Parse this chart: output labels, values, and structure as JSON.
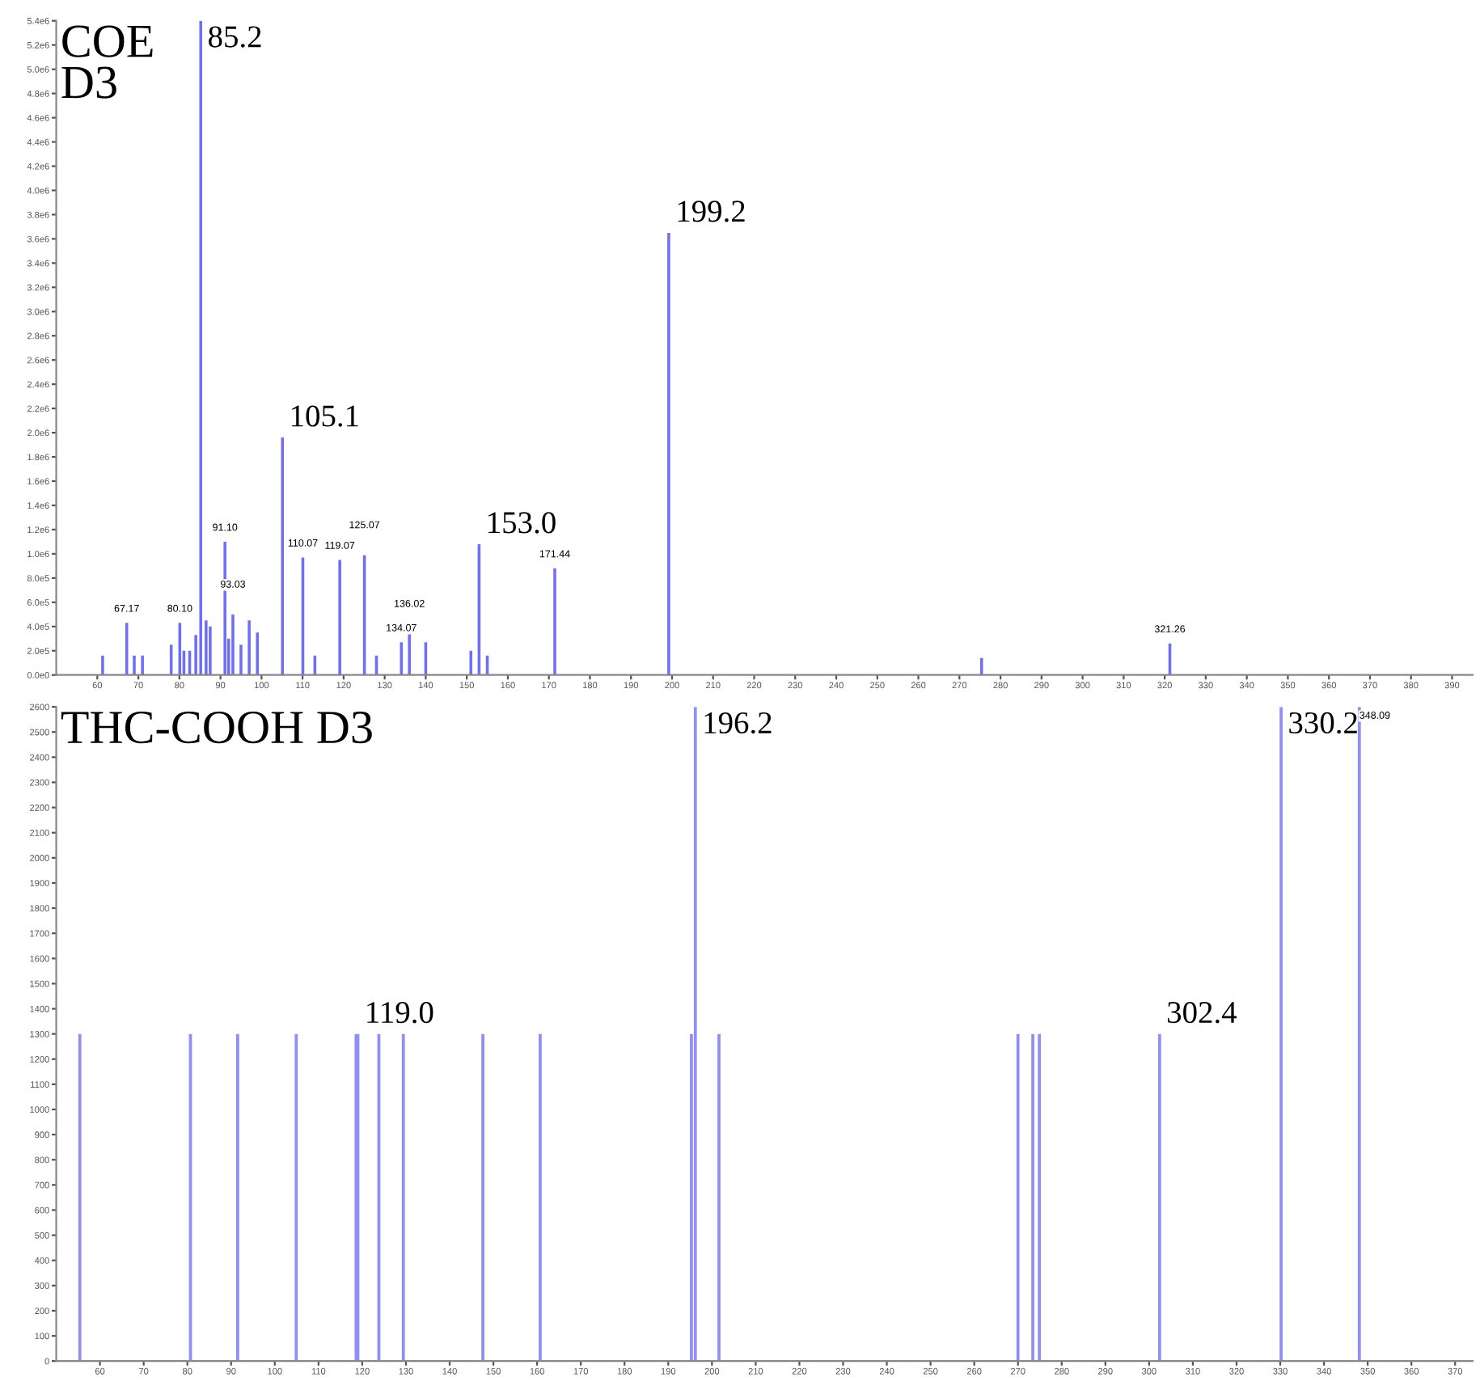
{
  "chart_data": [
    {
      "type": "bar",
      "title": "COE\nD3",
      "color": "#6f6ff5",
      "x": [
        61.3,
        67.17,
        69,
        71,
        78,
        80.1,
        81.1,
        82.5,
        84,
        85.2,
        86.5,
        87.5,
        91.1,
        92,
        93.03,
        95,
        97,
        99,
        105.1,
        110.07,
        113,
        119.07,
        125.07,
        128,
        134.07,
        136.02,
        140,
        151,
        153.0,
        155,
        171.44,
        199.2,
        275.4,
        321.26
      ],
      "values": [
        160000,
        430000,
        160000,
        160000,
        250000,
        430000,
        200000,
        200000,
        330000,
        5400000,
        450000,
        400000,
        1100000,
        300000,
        500000,
        250000,
        450000,
        350000,
        1960000,
        970000,
        160000,
        950000,
        990000,
        160000,
        270000,
        340000,
        270000,
        200000,
        1080000,
        160000,
        880000,
        3650000,
        140000,
        260000
      ],
      "annotations": [
        {
          "text": "85.2",
          "x": 85.2,
          "y": 5400000
        },
        {
          "text": "105.1",
          "x": 105.1,
          "y": 1960000
        },
        {
          "text": "153.0",
          "x": 153.0,
          "y": 1080000
        },
        {
          "text": "199.2",
          "x": 199.2,
          "y": 3650000
        },
        {
          "text": "67.17",
          "x": 67.17,
          "y": 430000
        },
        {
          "text": "80.10",
          "x": 80.1,
          "y": 430000
        },
        {
          "text": "91.10",
          "x": 91.1,
          "y": 1100000
        },
        {
          "text": "93.03",
          "x": 93.03,
          "y": 500000
        },
        {
          "text": "110.07",
          "x": 110.07,
          "y": 970000
        },
        {
          "text": "119.07",
          "x": 119.07,
          "y": 950000
        },
        {
          "text": "125.07",
          "x": 125.07,
          "y": 990000
        },
        {
          "text": "134.07",
          "x": 134.07,
          "y": 270000
        },
        {
          "text": "136.02",
          "x": 136.02,
          "y": 340000
        },
        {
          "text": "171.44",
          "x": 171.44,
          "y": 880000
        },
        {
          "text": "321.26",
          "x": 321.26,
          "y": 260000
        }
      ],
      "xlim": [
        50,
        395
      ],
      "xticks": [
        60,
        70,
        80,
        90,
        100,
        110,
        120,
        130,
        140,
        150,
        160,
        170,
        180,
        190,
        200,
        210,
        220,
        230,
        240,
        250,
        260,
        270,
        280,
        290,
        300,
        310,
        320,
        330,
        340,
        350,
        360,
        370,
        380,
        390
      ],
      "ylim": [
        0,
        5400000
      ],
      "yticks": [
        {
          "value": 0,
          "label": "0.0e0"
        },
        {
          "value": 200000,
          "label": "2.0e5"
        },
        {
          "value": 400000,
          "label": "4.0e5"
        },
        {
          "value": 600000,
          "label": "6.0e5"
        },
        {
          "value": 800000,
          "label": "8.0e5"
        },
        {
          "value": 1000000,
          "label": "1.0e6"
        },
        {
          "value": 1200000,
          "label": "1.2e6"
        },
        {
          "value": 1400000,
          "label": "1.4e6"
        },
        {
          "value": 1600000,
          "label": "1.6e6"
        },
        {
          "value": 1800000,
          "label": "1.8e6"
        },
        {
          "value": 2000000,
          "label": "2.0e6"
        },
        {
          "value": 2200000,
          "label": "2.2e6"
        },
        {
          "value": 2400000,
          "label": "2.4e6"
        },
        {
          "value": 2600000,
          "label": "2.6e6"
        },
        {
          "value": 2800000,
          "label": "2.8e6"
        },
        {
          "value": 3000000,
          "label": "3.0e6"
        },
        {
          "value": 3200000,
          "label": "3.2e6"
        },
        {
          "value": 3400000,
          "label": "3.4e6"
        },
        {
          "value": 3600000,
          "label": "3.6e6"
        },
        {
          "value": 3800000,
          "label": "3.8e6"
        },
        {
          "value": 4000000,
          "label": "4.0e6"
        },
        {
          "value": 4200000,
          "label": "4.2e6"
        },
        {
          "value": 4400000,
          "label": "4.4e6"
        },
        {
          "value": 4600000,
          "label": "4.6e6"
        },
        {
          "value": 4800000,
          "label": "4.8e6"
        },
        {
          "value": 5000000,
          "label": "5.0e6"
        },
        {
          "value": 5200000,
          "label": "5.2e6"
        },
        {
          "value": 5400000,
          "label": "5.4e6"
        }
      ],
      "grid": false,
      "legend": false
    },
    {
      "type": "bar",
      "title": "THC-COOH D3",
      "color": "#8f8ff7",
      "x": [
        55.4,
        80.7,
        91.5,
        104.9,
        118.6,
        119.0,
        123.8,
        129.4,
        147.6,
        160.7,
        195.3,
        196.2,
        201.6,
        270.0,
        273.4,
        274.9,
        302.4,
        330.2,
        348.09
      ],
      "values": [
        1300,
        1300,
        1300,
        1300,
        1300,
        1300,
        1300,
        1300,
        1300,
        1300,
        1300,
        2600,
        1300,
        1300,
        1300,
        1300,
        1300,
        2600,
        2600
      ],
      "annotations": [
        {
          "text": "119.0",
          "x": 119.0,
          "y": 1300
        },
        {
          "text": "196.2",
          "x": 196.2,
          "y": 2600
        },
        {
          "text": "302.4",
          "x": 302.4,
          "y": 1300
        },
        {
          "text": "330.2",
          "x": 330.2,
          "y": 2600
        },
        {
          "text": "348.09",
          "x": 348.09,
          "y": 2600
        }
      ],
      "xlim": [
        50,
        374
      ],
      "xticks": [
        60,
        70,
        80,
        90,
        100,
        110,
        120,
        130,
        140,
        150,
        160,
        170,
        180,
        190,
        200,
        210,
        220,
        230,
        240,
        250,
        260,
        270,
        280,
        290,
        300,
        310,
        320,
        330,
        340,
        350,
        360,
        370
      ],
      "ylim": [
        0,
        2600
      ],
      "yticks": [
        0,
        100,
        200,
        300,
        400,
        500,
        600,
        700,
        800,
        900,
        1000,
        1100,
        1200,
        1300,
        1400,
        1500,
        1600,
        1700,
        1800,
        1900,
        2000,
        2100,
        2200,
        2300,
        2400,
        2500,
        2600
      ],
      "grid": false,
      "legend": false
    }
  ]
}
